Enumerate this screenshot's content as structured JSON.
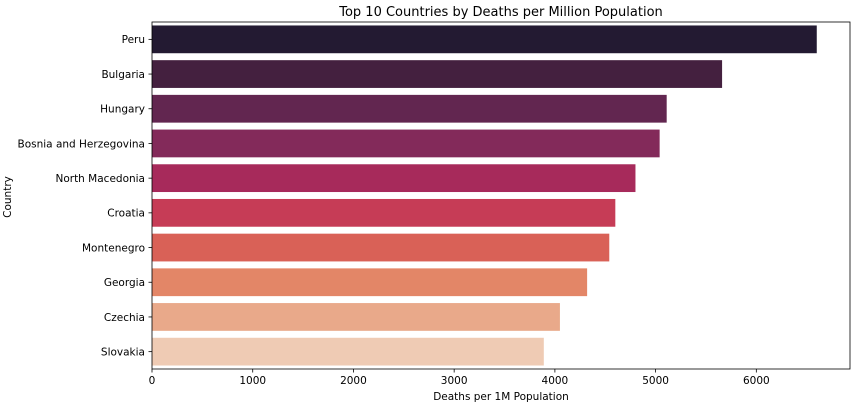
{
  "chart_data": {
    "type": "bar",
    "orientation": "horizontal",
    "title": "Top 10 Countries by Deaths per Million Population",
    "xlabel": "Deaths per 1M Population",
    "ylabel": "Country",
    "categories": [
      "Peru",
      "Bulgaria",
      "Hungary",
      "Bosnia and Herzegovina",
      "North Macedonia",
      "Croatia",
      "Montenegro",
      "Georgia",
      "Czechia",
      "Slovakia"
    ],
    "values": [
      6600,
      5660,
      5110,
      5040,
      4800,
      4600,
      4540,
      4320,
      4050,
      3890
    ],
    "colors": [
      "#231a32",
      "#44203f",
      "#622650",
      "#832a5a",
      "#a72a5b",
      "#c63c56",
      "#d96157",
      "#e38667",
      "#e9a98a",
      "#efcbb4"
    ],
    "xlim": [
      0,
      6930
    ],
    "xticks": [
      0,
      1000,
      2000,
      3000,
      4000,
      5000,
      6000
    ],
    "xtick_labels": [
      "0",
      "1000",
      "2000",
      "3000",
      "4000",
      "5000",
      "6000"
    ],
    "grid": false,
    "legend": "none"
  }
}
